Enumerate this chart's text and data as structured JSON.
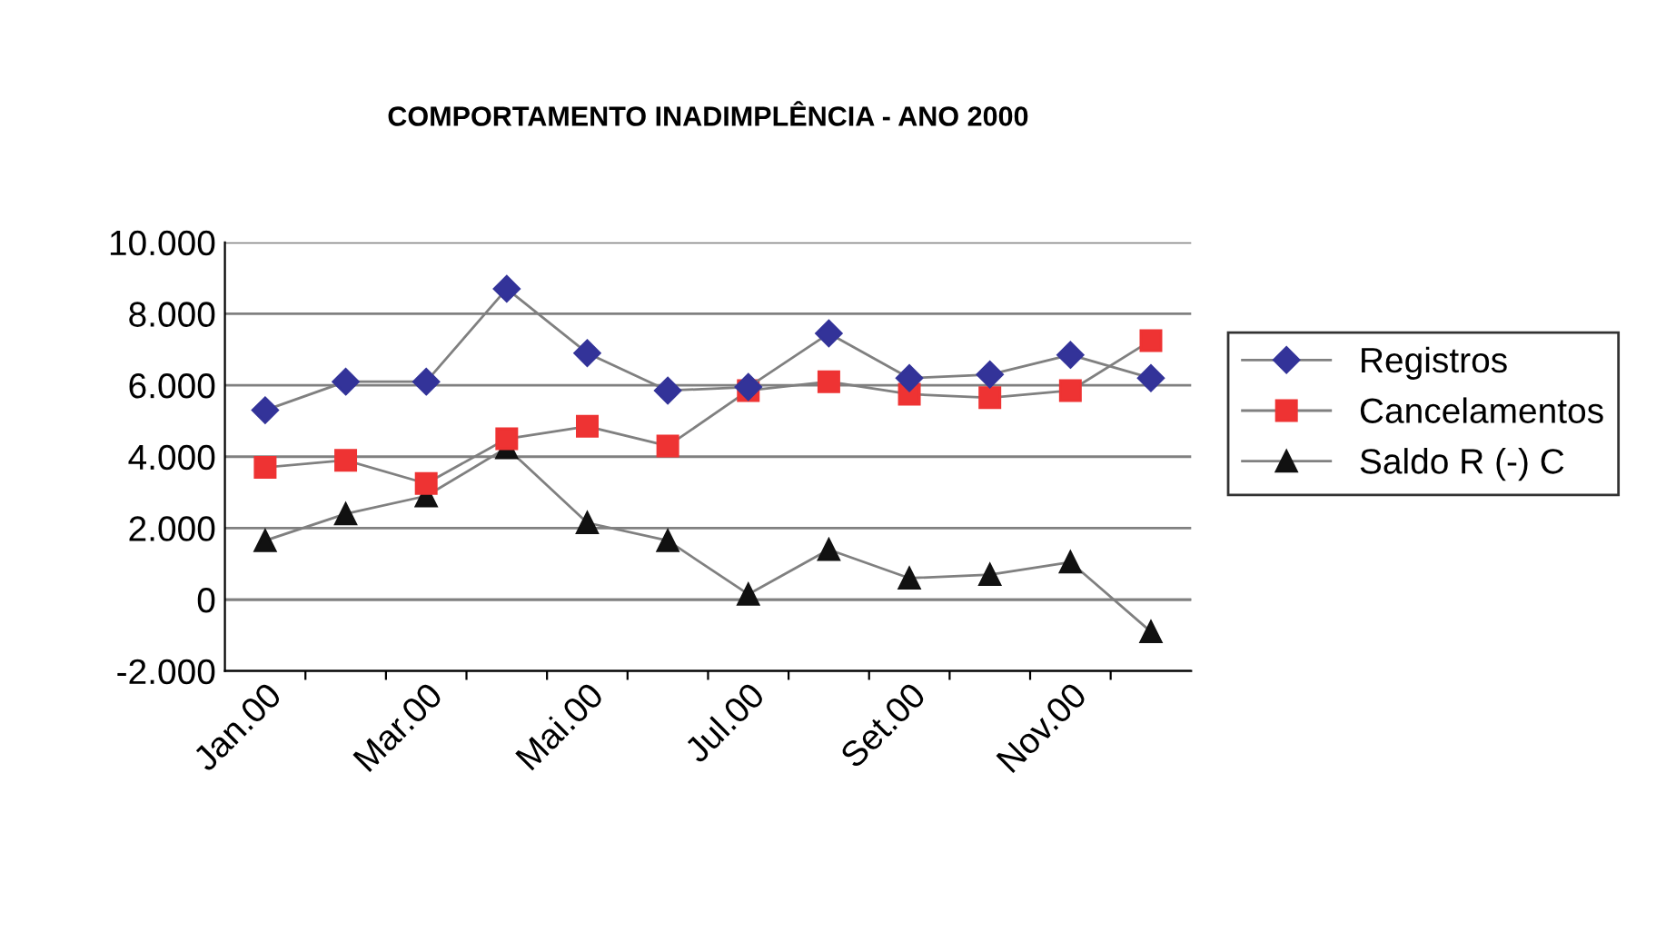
{
  "chart_data": {
    "type": "line",
    "title": "COMPORTAMENTO INADIMPLÊNCIA - ANO 2000",
    "categories": [
      "Jan.00",
      null,
      "Mar.00",
      null,
      "Mai.00",
      null,
      "Jul.00",
      null,
      "Set.00",
      null,
      "Nov.00",
      null
    ],
    "series": [
      {
        "name": "Registros",
        "color": "#333399",
        "marker": "diamond",
        "values": [
          5300,
          6100,
          6100,
          8700,
          6900,
          5850,
          5950,
          7450,
          6200,
          6300,
          6850,
          6200
        ]
      },
      {
        "name": "Cancelamentos",
        "color": "#ee3333",
        "marker": "square",
        "values": [
          3700,
          3900,
          3250,
          4500,
          4850,
          4300,
          5850,
          6100,
          5750,
          5650,
          5850,
          7250
        ]
      },
      {
        "name": "Saldo R (-) C",
        "color": "#111111",
        "marker": "triangle",
        "values": [
          1650,
          2400,
          2900,
          4250,
          2150,
          1650,
          150,
          1400,
          600,
          700,
          1050,
          -900
        ]
      }
    ],
    "ylim": [
      -2000,
      10000
    ],
    "yticks": [
      {
        "value": -2000,
        "label": "-2.000"
      },
      {
        "value": 0,
        "label": "0"
      },
      {
        "value": 2000,
        "label": "2.000"
      },
      {
        "value": 4000,
        "label": "4.000"
      },
      {
        "value": 6000,
        "label": "6.000"
      },
      {
        "value": 8000,
        "label": "8.000"
      },
      {
        "value": 10000,
        "label": "10.000"
      }
    ],
    "grid": "y",
    "legend": "right"
  }
}
